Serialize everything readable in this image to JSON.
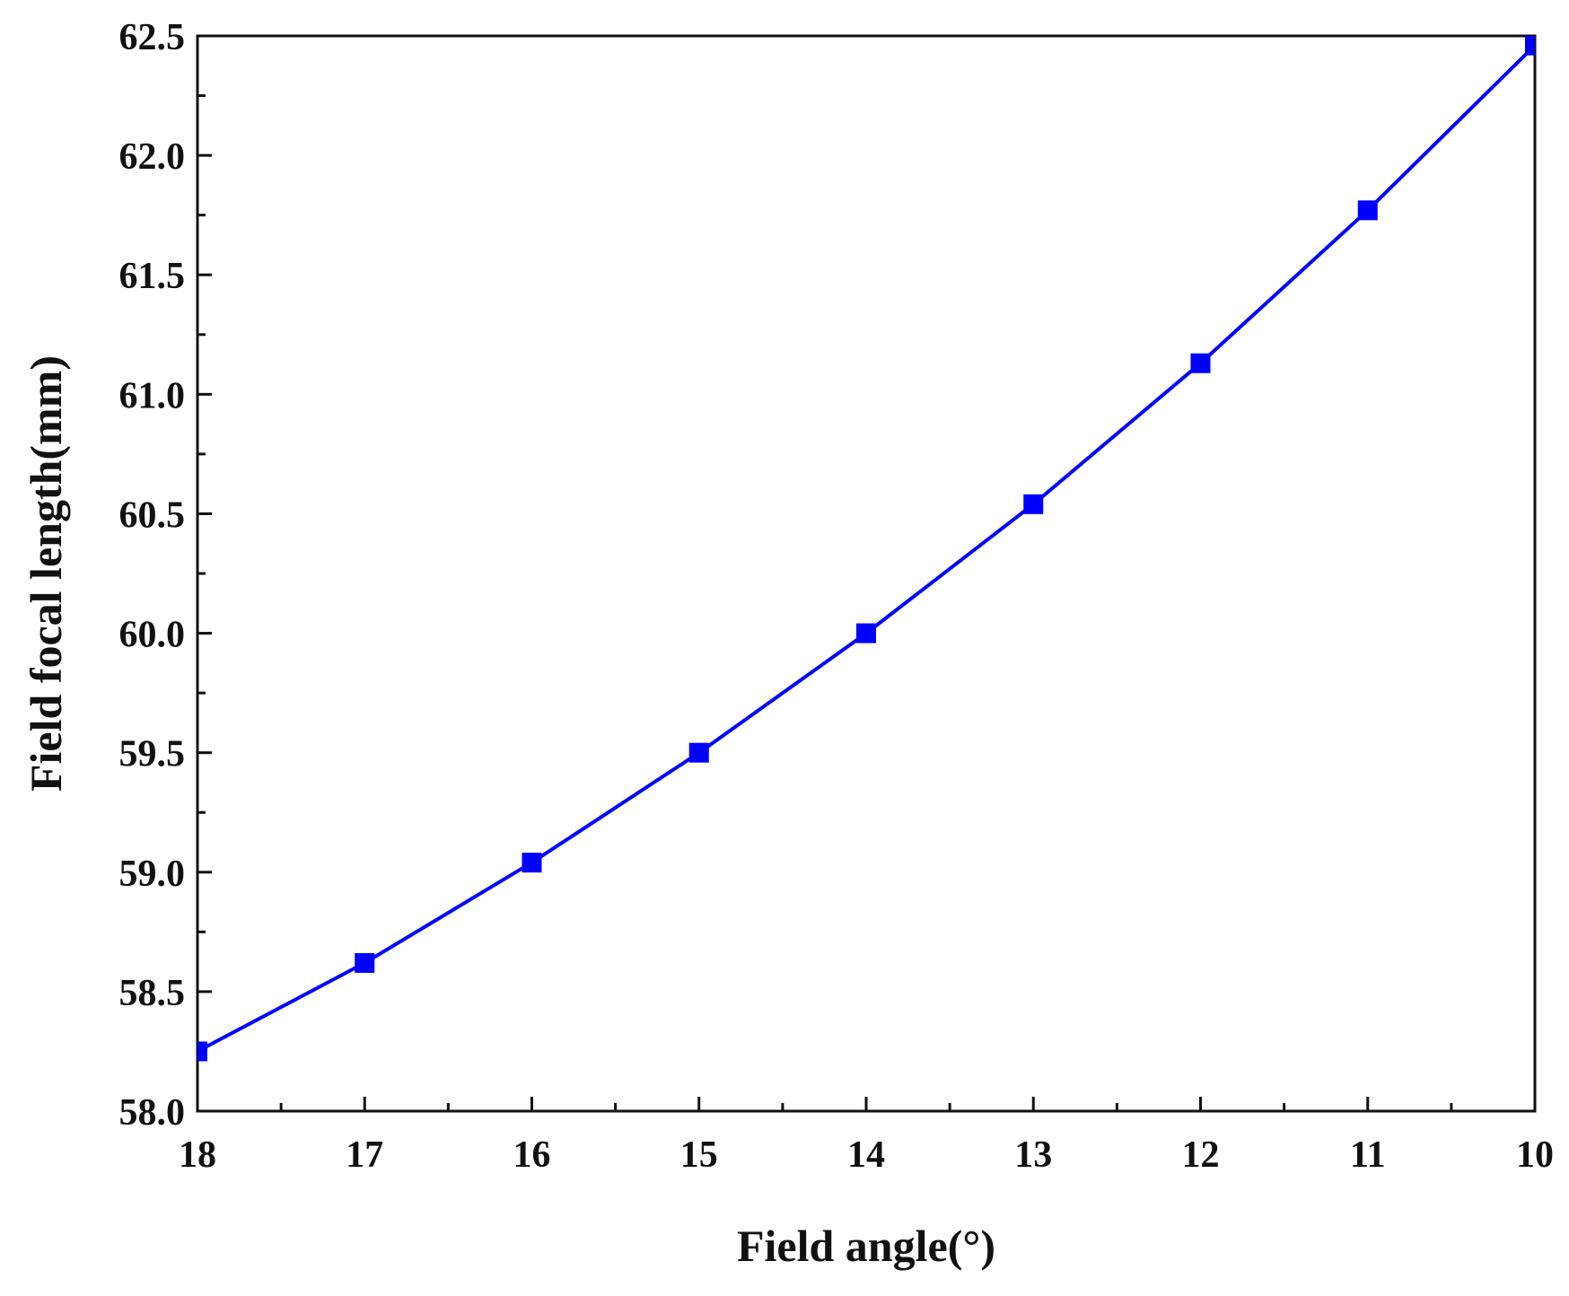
{
  "chart_data": {
    "type": "line",
    "title": "",
    "xlabel": "Field angle(°)",
    "ylabel": "Field focal length(mm)",
    "x_reversed": true,
    "xlim": [
      18,
      10
    ],
    "ylim": [
      58.0,
      62.5
    ],
    "x_ticks": [
      18,
      17,
      16,
      15,
      14,
      13,
      12,
      11,
      10
    ],
    "x_tick_labels": [
      "18",
      "17",
      "16",
      "15",
      "14",
      "13",
      "12",
      "11",
      "10"
    ],
    "y_ticks": [
      58.0,
      58.5,
      59.0,
      59.5,
      60.0,
      60.5,
      61.0,
      61.5,
      62.0,
      62.5
    ],
    "y_tick_labels": [
      "58.0",
      "58.5",
      "59.0",
      "59.5",
      "60.0",
      "60.5",
      "61.0",
      "61.5",
      "62.0",
      "62.5"
    ],
    "grid": false,
    "legend": "none",
    "series": [
      {
        "color": "#0000ff",
        "marker": "square",
        "x": [
          18,
          17,
          16,
          15,
          14,
          13,
          12,
          11,
          10
        ],
        "y": [
          58.25,
          58.62,
          59.04,
          59.5,
          60.0,
          60.54,
          61.13,
          61.77,
          62.46
        ]
      }
    ]
  }
}
